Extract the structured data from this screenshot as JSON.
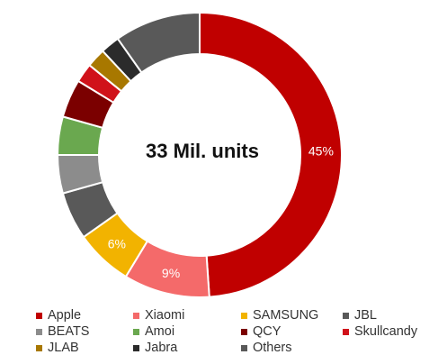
{
  "chart_data": {
    "type": "pie",
    "variant": "donut",
    "center_text": "33 Mil. units",
    "slices": [
      {
        "name": "Apple",
        "value": 45,
        "color": "#c00000",
        "data_label": "45%"
      },
      {
        "name": "Xiaomi",
        "value": 9,
        "color": "#f46a6a",
        "data_label": "9%"
      },
      {
        "name": "SAMSUNG",
        "value": 6,
        "color": "#f2b300",
        "data_label": "6%"
      },
      {
        "name": "JBL",
        "value": 5,
        "color": "#595959",
        "data_label": ""
      },
      {
        "name": "BEATS",
        "value": 4,
        "color": "#8c8c8c",
        "data_label": ""
      },
      {
        "name": "Amoi",
        "value": 4,
        "color": "#6aa84f",
        "data_label": ""
      },
      {
        "name": "QCY",
        "value": 4,
        "color": "#7b0000",
        "data_label": ""
      },
      {
        "name": "Skullcandy",
        "value": 2,
        "color": "#d0121a",
        "data_label": ""
      },
      {
        "name": "JLAB",
        "value": 2,
        "color": "#a87800",
        "data_label": ""
      },
      {
        "name": "Jabra",
        "value": 2,
        "color": "#2b2b2b",
        "data_label": ""
      },
      {
        "name": "Others",
        "value": 9,
        "color": "#595959",
        "data_label": ""
      }
    ],
    "legend_position": "bottom"
  }
}
